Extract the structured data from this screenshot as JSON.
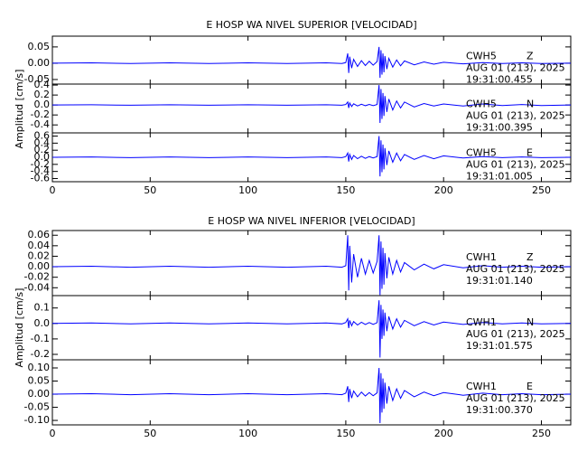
{
  "chart_data": [
    {
      "type": "line",
      "title": "E HOSP WA NIVEL SUPERIOR [VELOCIDAD]",
      "ylabel": "Amplitud [cm/s]",
      "color": "#0000ff",
      "xlim": [
        0,
        265
      ],
      "xticks": [
        0,
        50,
        100,
        150,
        200,
        250
      ],
      "x": [
        0,
        20,
        40,
        60,
        80,
        100,
        120,
        140,
        148,
        150,
        151,
        151.5,
        152,
        153,
        154,
        156,
        158,
        160,
        162,
        164,
        166,
        167,
        167.5,
        168,
        168.5,
        169,
        169.5,
        170,
        171,
        172,
        174,
        176,
        178,
        180,
        185,
        190,
        195,
        200,
        210,
        220,
        230,
        240,
        250,
        265
      ],
      "panels": [
        {
          "station": "CWH5",
          "component": "Z",
          "date": "AUG 01 (213), 2025",
          "time": "19:31:00.455",
          "ylim": [
            -0.064,
            0.083
          ],
          "yticks": [
            0.05,
            {
              "value": 0,
              "label": "0.00"
            },
            -0.05
          ],
          "values": [
            0,
            0.001,
            -0.001,
            0.001,
            -0.001,
            0.001,
            -0.001,
            0.001,
            -0.001,
            0.002,
            0.03,
            -0.03,
            0.02,
            -0.015,
            0.012,
            -0.01,
            0.008,
            -0.007,
            0.006,
            -0.006,
            0.005,
            0.05,
            -0.045,
            0.04,
            -0.035,
            0.03,
            -0.028,
            0.022,
            -0.018,
            0.015,
            -0.012,
            0.01,
            -0.008,
            0.007,
            -0.005,
            0.004,
            -0.003,
            0.003,
            -0.002,
            0.002,
            -0.001,
            0.001,
            -0.001,
            0
          ]
        },
        {
          "station": "CWH5",
          "component": "N",
          "date": "AUG 01 (213), 2025",
          "time": "19:31:00.395",
          "ylim": [
            -0.56,
            0.42
          ],
          "yticks": [
            0.4,
            0.2,
            {
              "value": 0,
              "label": "0.0"
            },
            -0.2,
            -0.4
          ],
          "values": [
            0,
            0.005,
            -0.005,
            0.005,
            -0.005,
            0.005,
            -0.005,
            0.005,
            -0.005,
            0.01,
            0.06,
            -0.06,
            0.04,
            -0.03,
            0.024,
            -0.02,
            0.016,
            -0.014,
            0.012,
            -0.012,
            0.01,
            0.4,
            -0.36,
            0.32,
            -0.28,
            0.24,
            -0.22,
            0.18,
            -0.14,
            0.12,
            -0.1,
            0.08,
            -0.06,
            0.06,
            -0.04,
            0.03,
            -0.02,
            0.02,
            -0.02,
            0.02,
            -0.01,
            0.01,
            -0.01,
            0
          ]
        },
        {
          "station": "CWH5",
          "component": "E",
          "date": "AUG 01 (213), 2025",
          "time": "19:31:01.005",
          "ylim": [
            -0.69,
            0.69
          ],
          "yticks": [
            0.6,
            0.4,
            0.2,
            {
              "value": 0,
              "label": "0.0"
            },
            -0.2,
            -0.4,
            -0.6
          ],
          "values": [
            0,
            0.01,
            -0.01,
            0.01,
            -0.01,
            0.01,
            -0.01,
            0.01,
            -0.01,
            0.02,
            0.12,
            -0.12,
            0.08,
            -0.06,
            0.05,
            -0.04,
            0.03,
            -0.03,
            0.02,
            -0.02,
            0.02,
            0.6,
            -0.54,
            0.48,
            -0.42,
            0.36,
            -0.34,
            0.26,
            -0.22,
            0.18,
            -0.14,
            0.12,
            -0.1,
            0.08,
            -0.06,
            0.05,
            -0.04,
            0.04,
            -0.02,
            0.02,
            -0.01,
            0.01,
            -0.01,
            0
          ]
        }
      ]
    },
    {
      "type": "line",
      "title": "E HOSP WA NIVEL INFERIOR [VELOCIDAD]",
      "ylabel": "Amplitud [cm/s]",
      "color": "#0000ff",
      "xlim": [
        0,
        265
      ],
      "xticks": [
        0,
        50,
        100,
        150,
        200,
        250
      ],
      "x": [
        0,
        20,
        40,
        60,
        80,
        100,
        120,
        140,
        148,
        150,
        151,
        151.5,
        152,
        153,
        154,
        156,
        158,
        160,
        162,
        164,
        166,
        167,
        167.5,
        168,
        168.5,
        169,
        169.5,
        170,
        171,
        172,
        174,
        176,
        178,
        180,
        185,
        190,
        195,
        200,
        210,
        220,
        230,
        240,
        250,
        265
      ],
      "panels": [
        {
          "station": "CWH1",
          "component": "Z",
          "date": "AUG 01 (213), 2025",
          "time": "19:31:01.140",
          "ylim": [
            -0.055,
            0.069
          ],
          "yticks": [
            0.06,
            0.04,
            0.02,
            {
              "value": 0,
              "label": "0.00"
            },
            -0.02,
            -0.04
          ],
          "values": [
            0,
            0.001,
            -0.001,
            0.001,
            -0.001,
            0.001,
            -0.001,
            0.001,
            -0.001,
            0.002,
            0.06,
            -0.045,
            0.04,
            -0.03,
            0.024,
            -0.02,
            0.016,
            -0.014,
            0.012,
            -0.012,
            0.01,
            0.06,
            -0.054,
            0.048,
            -0.042,
            0.036,
            -0.034,
            0.026,
            -0.022,
            0.018,
            -0.014,
            0.012,
            -0.01,
            0.008,
            -0.006,
            0.005,
            -0.004,
            0.004,
            -0.002,
            0.002,
            -0.001,
            0.001,
            -0.001,
            0
          ]
        },
        {
          "station": "CWH1",
          "component": "N",
          "date": "AUG 01 (213), 2025",
          "time": "19:31:01.575",
          "ylim": [
            -0.235,
            0.18
          ],
          "yticks": [
            0.1,
            {
              "value": 0,
              "label": "0.0"
            },
            -0.1,
            -0.2
          ],
          "values": [
            0,
            0.003,
            -0.003,
            0.003,
            -0.003,
            0.003,
            -0.003,
            0.003,
            -0.003,
            0.006,
            0.03,
            -0.03,
            0.02,
            -0.015,
            0.012,
            -0.01,
            0.008,
            -0.007,
            0.006,
            -0.006,
            0.005,
            0.15,
            -0.22,
            0.12,
            -0.1,
            0.09,
            -0.08,
            0.07,
            -0.05,
            0.045,
            -0.036,
            0.03,
            -0.024,
            0.02,
            -0.015,
            0.012,
            -0.01,
            0.009,
            -0.006,
            0.006,
            -0.003,
            0.003,
            -0.003,
            0
          ]
        },
        {
          "station": "CWH1",
          "component": "E",
          "date": "AUG 01 (213), 2025",
          "time": "19:31:00.370",
          "ylim": [
            -0.117,
            0.131
          ],
          "yticks": [
            {
              "value": 0.1,
              "label": "0.10"
            },
            0.05,
            {
              "value": 0,
              "label": "0.00"
            },
            -0.05,
            {
              "value": -0.1,
              "label": "-0.10"
            }
          ],
          "values": [
            0,
            0.002,
            -0.002,
            0.002,
            -0.002,
            0.002,
            -0.002,
            0.002,
            -0.002,
            0.004,
            0.03,
            -0.03,
            0.02,
            -0.015,
            0.012,
            -0.01,
            0.008,
            -0.007,
            0.006,
            -0.006,
            0.005,
            0.1,
            -0.11,
            0.08,
            -0.07,
            0.06,
            -0.056,
            0.044,
            -0.036,
            0.03,
            -0.024,
            0.02,
            -0.016,
            0.014,
            -0.01,
            0.008,
            -0.006,
            0.006,
            -0.004,
            0.004,
            -0.002,
            0.002,
            -0.002,
            0
          ]
        }
      ]
    }
  ]
}
